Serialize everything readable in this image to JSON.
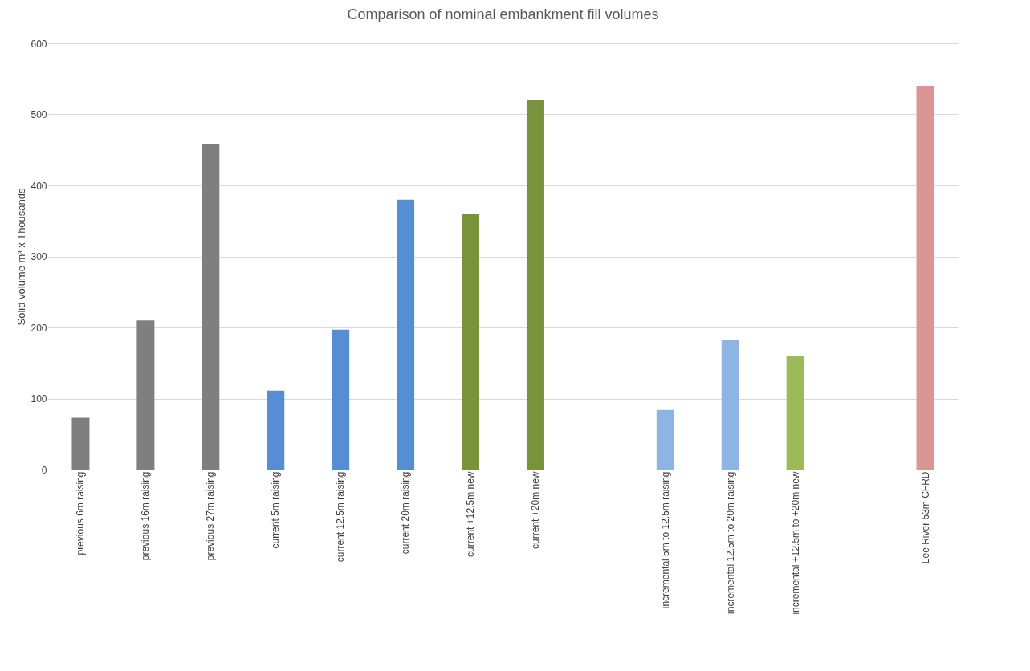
{
  "chart_data": {
    "type": "bar",
    "title": "Comparison of nominal embankment fill volumes",
    "ylabel": "Solid volume m³ x Thousands",
    "categories": [
      "previous 6m raising",
      "previous 16m raising",
      "previous 27m raising",
      "current 5m raising",
      "current 12.5m raising",
      "current 20m raising",
      "current +12.5m new",
      "current +20m new",
      null,
      "incremental 5m to 12.5m raising",
      "incremental 12.5m to 20m raising",
      "incremental +12.5m to +20m new",
      null,
      "Lee River 53m CFRD"
    ],
    "values": [
      73,
      210,
      458,
      111,
      197,
      380,
      360,
      521,
      null,
      84,
      183,
      160,
      null,
      540
    ],
    "colors": [
      "#7f7f7f",
      "#7f7f7f",
      "#7f7f7f",
      "#558ed5",
      "#558ed5",
      "#558ed5",
      "#77933c",
      "#77933c",
      null,
      "#8eb4e3",
      "#8eb4e3",
      "#9bbb59",
      null,
      "#d99694"
    ],
    "ylim": [
      0,
      600
    ],
    "yticks": [
      0,
      100,
      200,
      300,
      400,
      500,
      600
    ],
    "grid": "y"
  }
}
